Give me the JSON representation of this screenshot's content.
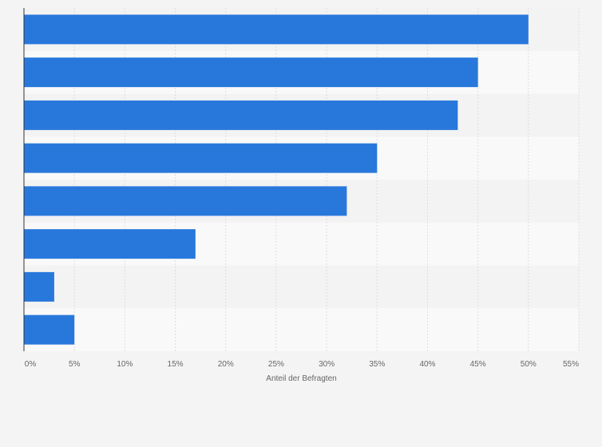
{
  "chart_data": {
    "type": "bar",
    "orientation": "horizontal",
    "categories": [
      "",
      "",
      "",
      "",
      "",
      "",
      "",
      ""
    ],
    "values": [
      50,
      45,
      43,
      35,
      32,
      17,
      3,
      5
    ],
    "xlabel": "Anteil der Befragten",
    "ylabel": "",
    "xlim": [
      0,
      55
    ],
    "x_ticks": [
      0,
      5,
      10,
      15,
      20,
      25,
      30,
      35,
      40,
      45,
      50,
      55
    ],
    "tick_suffix": "%",
    "grid": true,
    "legend": "none",
    "colors": {
      "bar": "#2878dc",
      "band_light": "#f9f9f9",
      "band_dark": "#f3f3f3",
      "grid": "#dedede",
      "axis": "#333333",
      "text": "#666666"
    }
  }
}
